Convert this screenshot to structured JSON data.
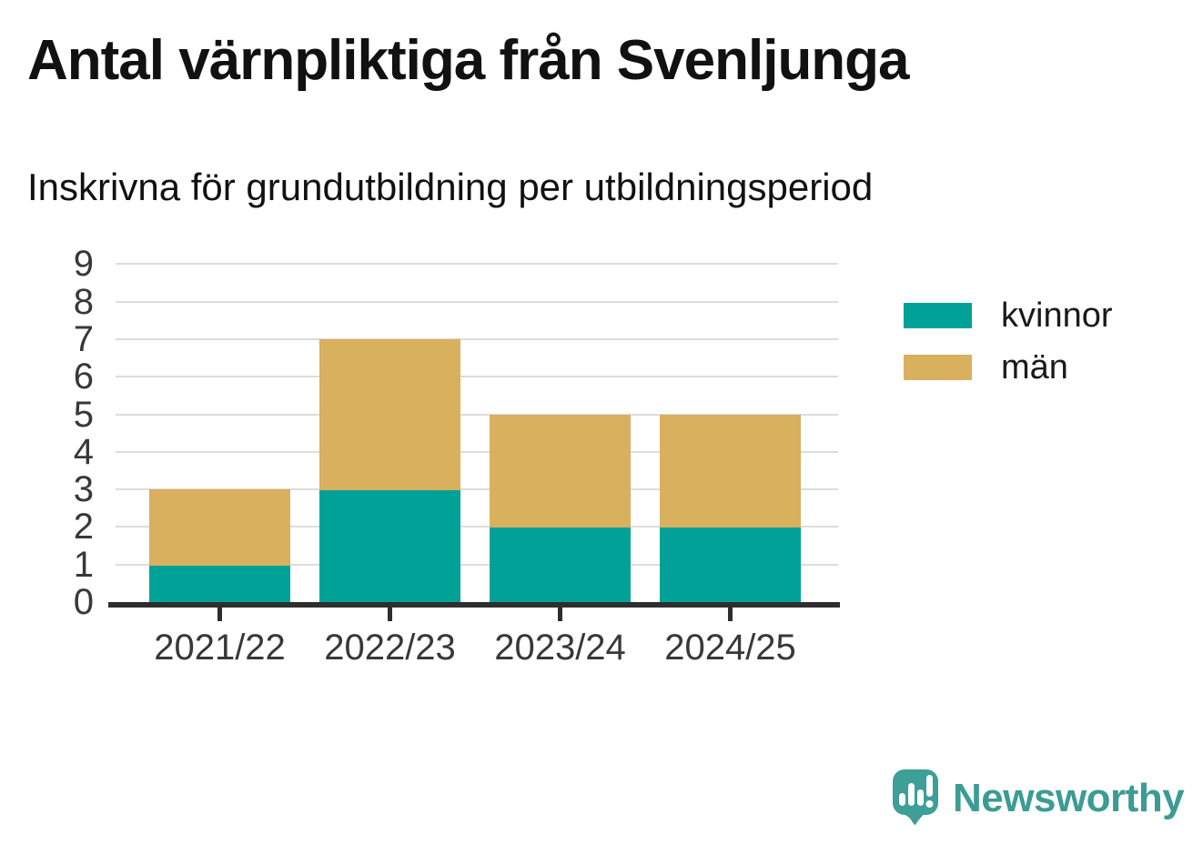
{
  "header": {
    "title": "Antal värnpliktiga från Svenljunga",
    "subtitle": "Inskrivna för grundutbildning per utbildningsperiod"
  },
  "chart_data": {
    "type": "bar",
    "stacked": true,
    "title": "Antal värnpliktiga från Svenljunga",
    "subtitle": "Inskrivna för grundutbildning per utbildningsperiod",
    "categories": [
      "2021/22",
      "2022/23",
      "2023/24",
      "2024/25"
    ],
    "series": [
      {
        "name": "kvinnor",
        "color": "#00a298",
        "values": [
          1,
          3,
          2,
          2
        ]
      },
      {
        "name": "män",
        "color": "#d9b05e",
        "values": [
          2,
          4,
          3,
          3
        ]
      }
    ],
    "totals": [
      3,
      7,
      5,
      5
    ],
    "xlabel": "",
    "ylabel": "",
    "ylim": [
      0,
      9
    ],
    "yticks": [
      0,
      1,
      2,
      3,
      4,
      5,
      6,
      7,
      8,
      9
    ],
    "grid": "horizontal",
    "gridline_color": "#dcdcdc",
    "axis_color": "#2e2e2e",
    "legend_position": "right"
  },
  "branding": {
    "logo_text": "Newsworthy",
    "brand_color": "#3b9c94"
  }
}
